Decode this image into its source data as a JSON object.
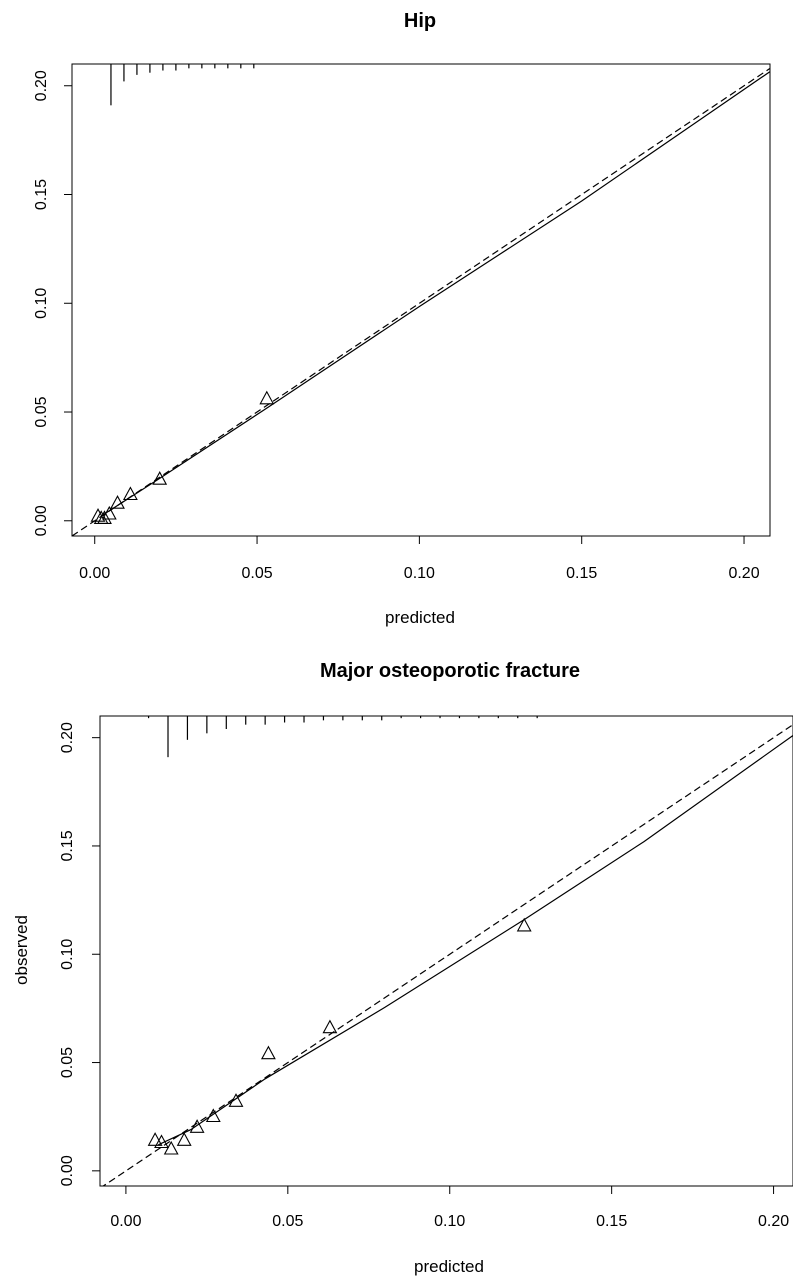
{
  "chart_data": [
    {
      "type": "line",
      "title": "Hip",
      "xlabel": "predicted",
      "ylabel": "",
      "xlim": [
        -0.007,
        0.208
      ],
      "ylim": [
        -0.007,
        0.21
      ],
      "xticks": [
        0.0,
        0.05,
        0.1,
        0.15,
        0.2
      ],
      "yticks": [
        0.0,
        0.05,
        0.1,
        0.15,
        0.2
      ],
      "xtick_labels": [
        "0.00",
        "0.05",
        "0.10",
        "0.15",
        "0.20"
      ],
      "ytick_labels": [
        "0.00",
        "0.05",
        "0.10",
        "0.15",
        "0.20"
      ],
      "grid": false,
      "series": [
        {
          "style": "dashed",
          "x": [
            -0.007,
            0.208
          ],
          "y": [
            -0.007,
            0.208
          ]
        },
        {
          "style": "solid",
          "x": [
            0.002,
            0.02,
            0.053,
            0.1,
            0.15,
            0.208
          ],
          "y": [
            0.0022,
            0.0195,
            0.0518,
            0.0985,
            0.147,
            0.2065
          ]
        },
        {
          "style": "triangles",
          "x": [
            0.001,
            0.002,
            0.003,
            0.0045,
            0.007,
            0.011,
            0.02,
            0.053
          ],
          "y": [
            0.002,
            0.001,
            0.001,
            0.003,
            0.008,
            0.012,
            0.019,
            0.056
          ]
        },
        {
          "style": "rug",
          "x": [
            0.005,
            0.009,
            0.013,
            0.017,
            0.021,
            0.025,
            0.029,
            0.033,
            0.037,
            0.041,
            0.045,
            0.049
          ],
          "y": [
            0.019,
            0.008,
            0.005,
            0.004,
            0.003,
            0.003,
            0.002,
            0.002,
            0.002,
            0.002,
            0.002,
            0.002
          ]
        }
      ]
    },
    {
      "type": "line",
      "title": "Major osteoporotic fracture",
      "xlabel": "predicted",
      "ylabel": "observed",
      "xlim": [
        -0.008,
        0.206
      ],
      "ylim": [
        -0.007,
        0.21
      ],
      "xticks": [
        0.0,
        0.05,
        0.1,
        0.15,
        0.2
      ],
      "yticks": [
        0.0,
        0.05,
        0.1,
        0.15,
        0.2
      ],
      "xtick_labels": [
        "0.00",
        "0.05",
        "0.10",
        "0.15",
        "0.20"
      ],
      "ytick_labels": [
        "0.00",
        "0.05",
        "0.10",
        "0.15",
        "0.20"
      ],
      "grid": false,
      "series": [
        {
          "style": "dashed",
          "x": [
            -0.008,
            0.206
          ],
          "y": [
            -0.008,
            0.206
          ]
        },
        {
          "style": "solid",
          "x": [
            0.01,
            0.02,
            0.043,
            0.08,
            0.123,
            0.16,
            0.206
          ],
          "y": [
            0.012,
            0.019,
            0.0425,
            0.0755,
            0.116,
            0.152,
            0.201
          ]
        },
        {
          "style": "triangles",
          "x": [
            0.009,
            0.011,
            0.014,
            0.018,
            0.022,
            0.027,
            0.034,
            0.044,
            0.063,
            0.123
          ],
          "y": [
            0.014,
            0.013,
            0.01,
            0.014,
            0.02,
            0.025,
            0.032,
            0.054,
            0.066,
            0.113
          ]
        },
        {
          "style": "rug",
          "x": [
            0.007,
            0.013,
            0.019,
            0.025,
            0.031,
            0.037,
            0.043,
            0.049,
            0.055,
            0.061,
            0.067,
            0.073,
            0.079,
            0.085,
            0.091,
            0.097,
            0.103,
            0.109,
            0.115,
            0.121,
            0.127
          ],
          "y": [
            0.001,
            0.019,
            0.011,
            0.008,
            0.006,
            0.004,
            0.004,
            0.003,
            0.003,
            0.002,
            0.002,
            0.002,
            0.002,
            0.001,
            0.001,
            0.001,
            0.001,
            0.001,
            0.001,
            0.001,
            0.001
          ]
        }
      ]
    }
  ]
}
